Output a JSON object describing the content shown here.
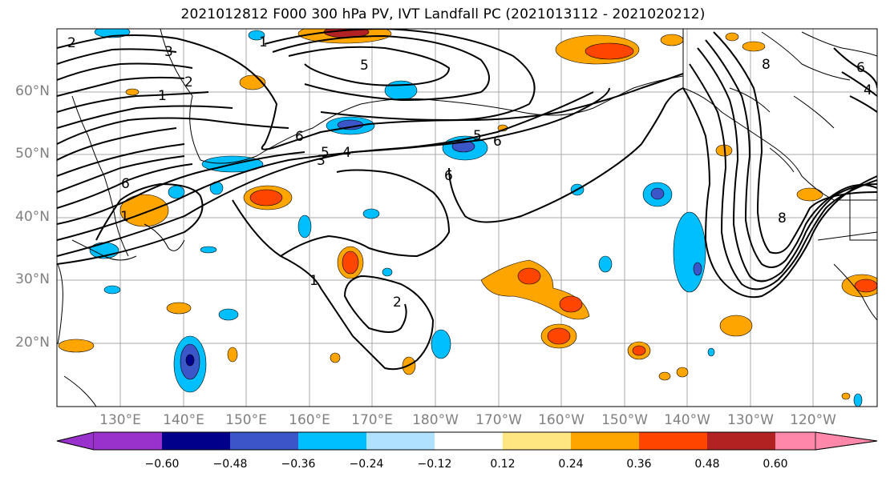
{
  "title": "2021012812 F000 300 hPa PV, IVT Landfall PC (2021013112 - 2021020212)",
  "map": {
    "lat_labels": [
      "60°N",
      "50°N",
      "40°N",
      "30°N",
      "20°N"
    ],
    "lon_labels": [
      "130°E",
      "140°E",
      "150°E",
      "160°E",
      "170°E",
      "180°W",
      "170°W",
      "160°W",
      "150°W",
      "140°W",
      "130°W",
      "120°W"
    ],
    "contour_labels": [
      "2",
      "3",
      "1",
      "2",
      "1",
      "5",
      "6",
      "5",
      "4",
      "3",
      "6",
      "5",
      "6",
      "1",
      "6",
      "1",
      "2",
      "8",
      "8",
      "6",
      "4"
    ],
    "gridlines": true
  },
  "colorbar": {
    "tick_labels": [
      "−0.60",
      "−0.48",
      "−0.36",
      "−0.24",
      "−0.12",
      "0.12",
      "0.24",
      "0.36",
      "0.48",
      "0.60"
    ],
    "colors": [
      "#9932cc",
      "#00008b",
      "#3a56c8",
      "#00bfff",
      "#b0e2ff",
      "#ffffff",
      "#ffe680",
      "#ffa500",
      "#ff4500",
      "#b22222",
      "#ff88aa"
    ]
  },
  "colors": {
    "contour": "#000000",
    "grid": "#a0a0a0",
    "coast": "#000000"
  }
}
